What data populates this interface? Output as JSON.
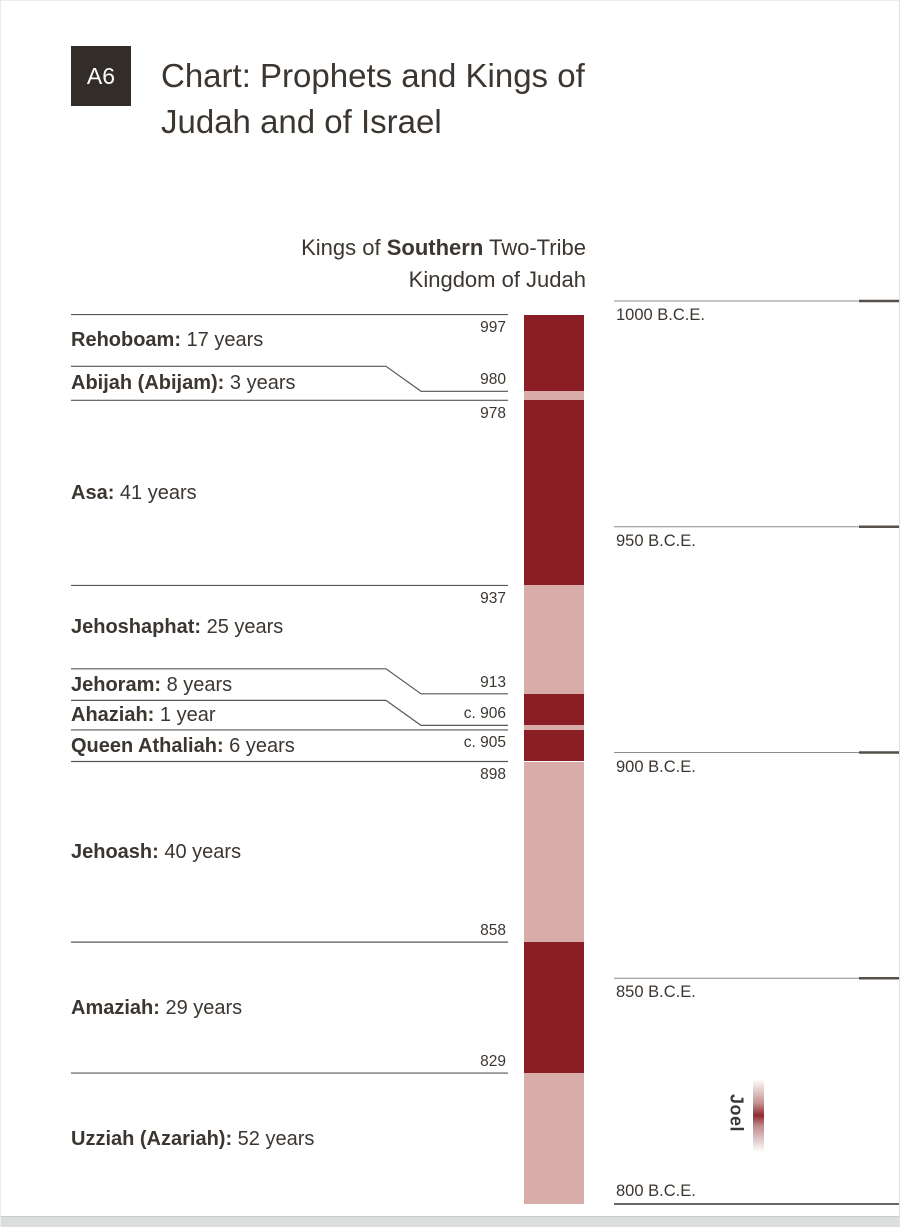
{
  "header": {
    "badge": "A6",
    "title_lines": [
      "Chart: Prophets and Kings of",
      "Judah and of Israel"
    ]
  },
  "chart_data": {
    "type": "timeline-bar",
    "title": "Kings of Southern Two-Tribe Kingdom of Judah",
    "subtitle": {
      "line1_pre": "Kings of ",
      "line1_bold": "Southern",
      "line1_post": " Two-Tribe",
      "line2": "Kingdom of Judah"
    },
    "axis": {
      "orientation": "vertical, years descending downward",
      "range_years": [
        1000,
        800
      ],
      "ticks": [
        {
          "year": 1000,
          "label": "1000 B.C.E.",
          "label_position": "below"
        },
        {
          "year": 950,
          "label": "950 B.C.E.",
          "label_position": "below"
        },
        {
          "year": 900,
          "label": "900 B.C.E.",
          "label_position": "below"
        },
        {
          "year": 850,
          "label": "850 B.C.E.",
          "label_position": "below"
        },
        {
          "year": 800,
          "label": "800 B.C.E.",
          "label_position": "above"
        }
      ]
    },
    "kings": [
      {
        "name": "Rehoboam:",
        "reign": "17 years",
        "start_year": 997,
        "start_label": "997",
        "jogged_line": false,
        "year_label_above": false
      },
      {
        "name": "Abijah (Abijam):",
        "reign": "3 years",
        "start_year": 980,
        "start_label": "980",
        "jogged_line": true,
        "year_label_above": true
      },
      {
        "name": "Asa:",
        "reign": "41 years",
        "start_year": 978,
        "start_label": "978",
        "jogged_line": false,
        "year_label_above": false
      },
      {
        "name": "Jehoshaphat:",
        "reign": "25 years",
        "start_year": 937,
        "start_label": "937",
        "jogged_line": false,
        "year_label_above": false
      },
      {
        "name": "Jehoram:",
        "reign": "8 years",
        "start_year": 913,
        "start_label": "913",
        "jogged_line": true,
        "year_label_above": true
      },
      {
        "name": "Ahaziah:",
        "reign": "1 year",
        "start_year": 906,
        "start_label": "c. 906",
        "jogged_line": true,
        "year_label_above": true
      },
      {
        "name": "Queen Athaliah:",
        "reign": "6 years",
        "start_year": 905,
        "start_label": "c. 905",
        "jogged_line": false,
        "year_label_above": false
      },
      {
        "name": "Jehoash:",
        "reign": "40 years",
        "start_year": 898,
        "start_label": "898",
        "jogged_line": false,
        "year_label_above": false
      },
      {
        "name": "Amaziah:",
        "reign": "29 years",
        "start_year": 858,
        "start_label": "858",
        "jogged_line": false,
        "year_label_above": true
      },
      {
        "name": "Uzziah (Azariah):",
        "reign": "52 years",
        "start_year": 829,
        "start_label": "829",
        "jogged_line": false,
        "year_label_above": true
      }
    ],
    "timeline_cutoff_year": 800,
    "bar": {
      "colors": {
        "dark_red": "#8b1e24",
        "light_pink": "#d7aca9"
      },
      "pattern": "segments alternate dark_red / light_pink starting with dark_red"
    },
    "prophets": [
      {
        "name": "Joel",
        "approx_span_years": [
          827,
          812
        ]
      }
    ]
  }
}
